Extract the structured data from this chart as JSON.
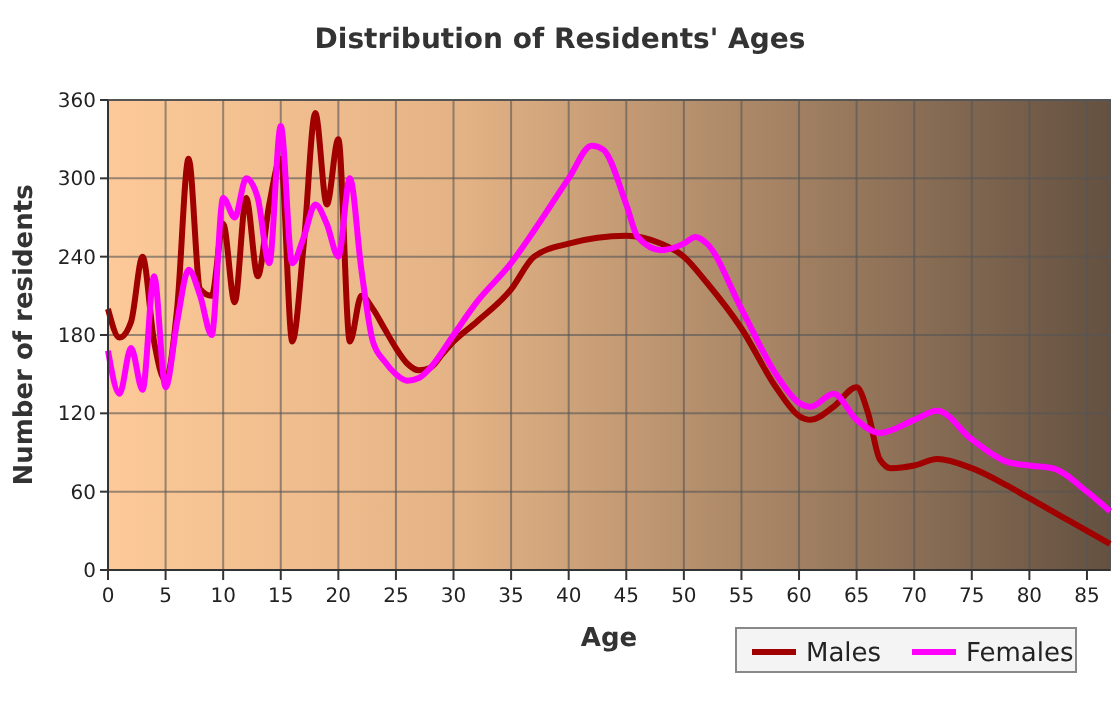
{
  "chart_data": {
    "type": "line",
    "title": "Distribution of Residents' Ages",
    "xlabel": "Age",
    "ylabel": "Number of residents",
    "xlim": [
      0,
      87
    ],
    "xticks": [
      0,
      5,
      10,
      15,
      20,
      25,
      30,
      35,
      40,
      45,
      50,
      55,
      60,
      65,
      70,
      75,
      80,
      85
    ],
    "ylim": [
      0,
      360
    ],
    "yticks": [
      0,
      60,
      120,
      180,
      240,
      300,
      360
    ],
    "grid": true,
    "legend": "bottom",
    "line_style": "solid",
    "marker": "none",
    "series": [
      {
        "name": "Males",
        "color": "#a00000",
        "x": [
          0,
          1,
          2,
          3,
          4,
          5,
          6,
          7,
          8,
          9,
          10,
          11,
          12,
          13,
          14,
          15,
          16,
          17,
          18,
          19,
          20,
          21,
          22,
          23,
          24,
          25,
          26,
          27,
          28,
          29,
          30,
          32,
          35,
          37,
          40,
          45,
          48,
          50,
          52,
          55,
          58,
          60,
          61,
          63,
          65,
          66,
          67,
          68,
          70,
          72,
          75,
          78,
          80,
          83,
          87
        ],
        "values": [
          200,
          178,
          190,
          240,
          175,
          145,
          200,
          315,
          215,
          210,
          265,
          205,
          285,
          225,
          280,
          315,
          175,
          250,
          350,
          280,
          330,
          175,
          210,
          200,
          185,
          170,
          158,
          153,
          155,
          165,
          175,
          190,
          215,
          240,
          250,
          256,
          250,
          240,
          220,
          185,
          140,
          118,
          115,
          125,
          140,
          120,
          85,
          78,
          80,
          85,
          78,
          65,
          55,
          40,
          20
        ]
      },
      {
        "name": "Females",
        "color": "#ff00ff",
        "x": [
          0,
          1,
          2,
          3,
          4,
          5,
          6,
          7,
          8,
          9,
          10,
          11,
          12,
          13,
          14,
          15,
          16,
          17,
          18,
          19,
          20,
          21,
          22,
          23,
          24,
          25,
          26,
          27,
          28,
          30,
          32,
          35,
          37,
          40,
          42,
          43,
          45,
          46,
          48,
          50,
          51,
          52,
          55,
          58,
          60,
          61,
          63,
          65,
          67,
          70,
          72,
          75,
          78,
          80,
          82,
          85,
          87
        ],
        "values": [
          168,
          135,
          170,
          138,
          225,
          140,
          190,
          230,
          210,
          180,
          285,
          270,
          300,
          285,
          235,
          340,
          235,
          255,
          280,
          265,
          240,
          300,
          230,
          175,
          160,
          150,
          145,
          147,
          155,
          180,
          205,
          235,
          260,
          300,
          325,
          322,
          280,
          255,
          245,
          250,
          255,
          250,
          200,
          150,
          128,
          125,
          135,
          115,
          105,
          115,
          122,
          100,
          83,
          80,
          78,
          60,
          45
        ]
      }
    ]
  }
}
